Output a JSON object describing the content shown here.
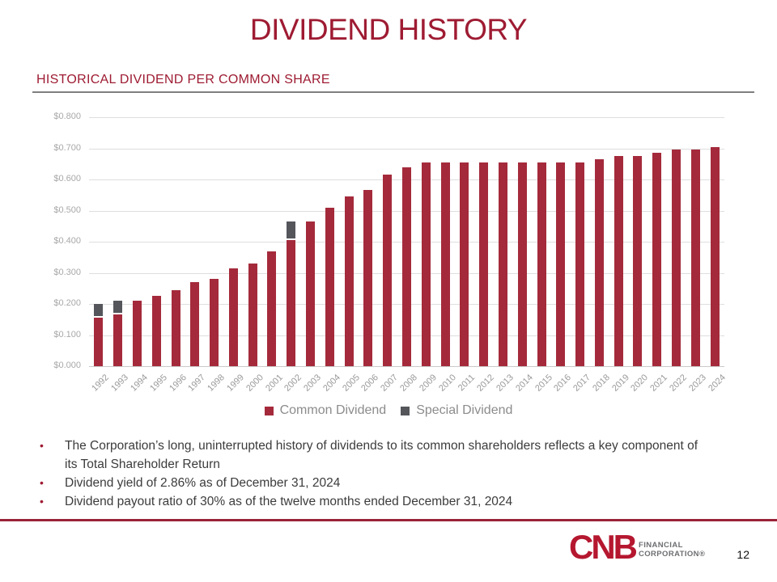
{
  "slide": {
    "title": "DIVIDEND HISTORY",
    "subtitle": "HISTORICAL DIVIDEND PER COMMON SHARE",
    "page_number": "12"
  },
  "chart_data": {
    "type": "bar",
    "stacked": true,
    "title": "HISTORICAL DIVIDEND PER COMMON SHARE",
    "categories": [
      1992,
      1993,
      1994,
      1995,
      1996,
      1997,
      1998,
      1999,
      2000,
      2001,
      2002,
      2003,
      2004,
      2005,
      2006,
      2007,
      2008,
      2009,
      2010,
      2011,
      2012,
      2013,
      2014,
      2015,
      2016,
      2017,
      2018,
      2019,
      2020,
      2021,
      2022,
      2023,
      2024
    ],
    "series": [
      {
        "name": "Common Dividend",
        "color": "#A42A3B",
        "values": [
          0.155,
          0.165,
          0.21,
          0.225,
          0.245,
          0.27,
          0.28,
          0.315,
          0.33,
          0.37,
          0.405,
          0.465,
          0.51,
          0.545,
          0.565,
          0.615,
          0.64,
          0.655,
          0.655,
          0.655,
          0.655,
          0.655,
          0.655,
          0.655,
          0.655,
          0.655,
          0.665,
          0.675,
          0.675,
          0.685,
          0.695,
          0.695,
          0.705
        ]
      },
      {
        "name": "Special Dividend",
        "color": "#54565B",
        "values": [
          0.045,
          0.045,
          0,
          0,
          0,
          0,
          0,
          0,
          0,
          0,
          0.06,
          0,
          0,
          0,
          0,
          0,
          0,
          0,
          0,
          0,
          0,
          0,
          0,
          0,
          0,
          0,
          0,
          0,
          0,
          0,
          0,
          0,
          0
        ]
      }
    ],
    "ylim": [
      0,
      0.8
    ],
    "ytick_labels": [
      "$0.000",
      "$0.100",
      "$0.200",
      "$0.300",
      "$0.400",
      "$0.500",
      "$0.600",
      "$0.700",
      "$0.800"
    ],
    "grid": true,
    "legend_position": "bottom",
    "xlabel": "",
    "ylabel": ""
  },
  "bullets": [
    "The Corporation’s long, uninterrupted history of dividends to its common shareholders reflects a key component of its Total Shareholder Return",
    "Dividend yield of 2.86% as of December 31, 2024",
    "Dividend payout ratio of 30% as of the twelve months ended December 31, 2024"
  ],
  "footer": {
    "logo_main": "CNB",
    "logo_line1": "FINANCIAL",
    "logo_line2": "CORPORATION®"
  },
  "colors": {
    "brand_red": "#9E1B32",
    "bar_red": "#A42A3B",
    "special_gray": "#54565B",
    "footer_line": "#9A2339"
  }
}
